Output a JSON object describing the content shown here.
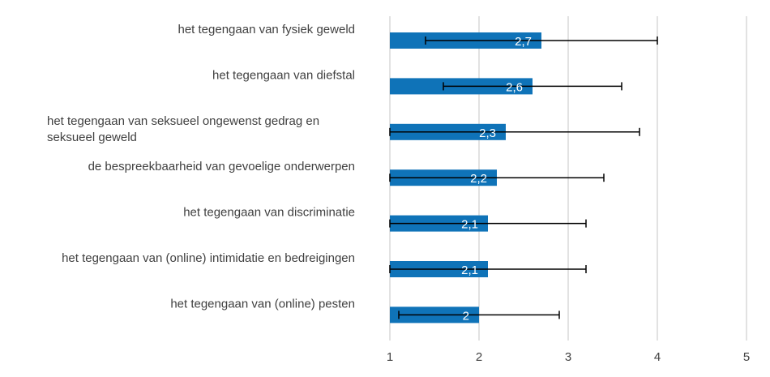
{
  "chart_data": {
    "type": "bar",
    "orientation": "horizontal",
    "title": "",
    "xlabel": "",
    "ylabel": "",
    "xlim": [
      1,
      5
    ],
    "x_ticks": [
      "1",
      "2",
      "3",
      "4",
      "5"
    ],
    "grid": true,
    "bar_color": "#0f73b8",
    "categories": [
      [
        "het tegengaan van fysiek geweld"
      ],
      [
        "het tegengaan van diefstal"
      ],
      [
        "het tegengaan van seksueel ongewenst gedrag en",
        "seksueel geweld"
      ],
      [
        "de bespreekbaarheid van gevoelige onderwerpen"
      ],
      [
        "het tegengaan van discriminatie"
      ],
      [
        "het tegengaan van (online) intimidatie en bedreigingen"
      ],
      [
        "het tegengaan van (online) pesten"
      ]
    ],
    "values": [
      2.7,
      2.6,
      2.3,
      2.2,
      2.1,
      2.1,
      2.0
    ],
    "value_labels": [
      "2,7",
      "2,6",
      "2,3",
      "2,2",
      "2,1",
      "2,1",
      "2"
    ],
    "error_low": [
      1.4,
      1.6,
      1.0,
      1.0,
      1.0,
      1.0,
      1.1
    ],
    "error_high": [
      4.0,
      3.6,
      3.8,
      3.4,
      3.2,
      3.2,
      2.9
    ]
  }
}
